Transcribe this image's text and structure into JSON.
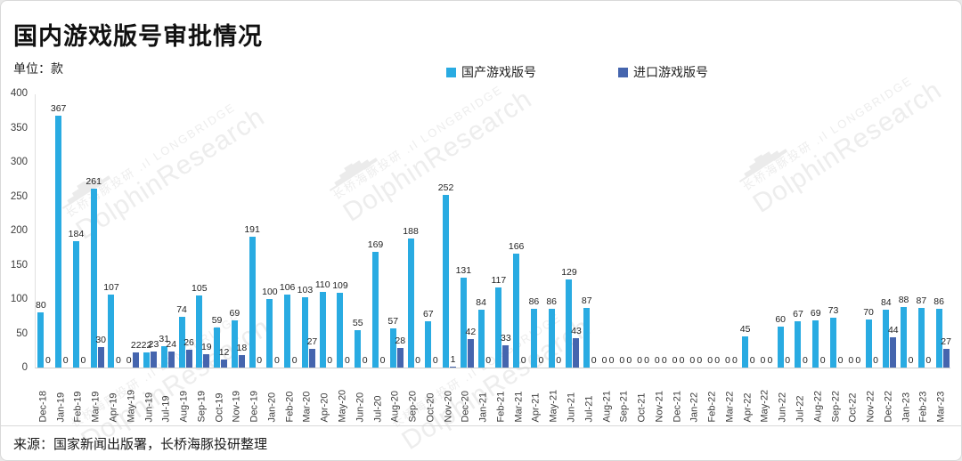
{
  "title": "国内游戏版号审批情况",
  "unit_label": "单位：款",
  "source": "来源：国家新闻出版署，长桥海豚投研整理",
  "watermark": {
    "logo_bars": "▁▃▅▇▆▄▂",
    "line1": "长桥海豚投研 .ıl",
    "line2": "LONGBRIDGE",
    "line3": "DolphinResearch"
  },
  "colors": {
    "domestic": "#29abe2",
    "import": "#4565ae",
    "label": "#1f1f1f",
    "axis": "#cfcfcf"
  },
  "legend": [
    {
      "label": "国产游戏版号",
      "color": "#29abe2"
    },
    {
      "label": "进口游戏版号",
      "color": "#4565ae"
    }
  ],
  "chart_data": {
    "type": "bar",
    "title": "国内游戏版号审批情况",
    "ylabel": "款",
    "ylim": [
      0,
      400
    ],
    "yticks": [
      0,
      50,
      100,
      150,
      200,
      250,
      300,
      350,
      400
    ],
    "grid": false,
    "legend_position": "top-center",
    "categories": [
      "Dec-18",
      "Jan-19",
      "Feb-19",
      "Mar-19",
      "Apr-19",
      "May-19",
      "Jun-19",
      "Jul-19",
      "Aug-19",
      "Sep-19",
      "Oct-19",
      "Nov-19",
      "Dec-19",
      "Jan-20",
      "Feb-20",
      "Mar-20",
      "Apr-20",
      "May-20",
      "Jun-20",
      "Jul-20",
      "Aug-20",
      "Sep-20",
      "Oct-20",
      "Nov-20",
      "Dec-20",
      "Jan-21",
      "Feb-21",
      "Mar-21",
      "Apr-21",
      "May-21",
      "Jun-21",
      "Jul-21",
      "Aug-21",
      "Sep-21",
      "Oct-21",
      "Nov-21",
      "Dec-21",
      "Jan-22",
      "Feb-22",
      "Mar-22",
      "Apr-22",
      "May-22",
      "Jun-22",
      "Jul-22",
      "Aug-22",
      "Sep-22",
      "Oct-22",
      "Nov-22",
      "Dec-22",
      "Jan-23",
      "Feb-23",
      "Mar-23"
    ],
    "series": [
      {
        "name": "国产游戏版号",
        "color": "#29abe2",
        "values": [
          80,
          367,
          184,
          261,
          107,
          0,
          22,
          31,
          74,
          105,
          59,
          69,
          191,
          100,
          106,
          103,
          110,
          109,
          55,
          169,
          57,
          188,
          67,
          252,
          131,
          84,
          117,
          166,
          86,
          86,
          129,
          87,
          0,
          0,
          0,
          0,
          0,
          0,
          0,
          0,
          45,
          0,
          60,
          67,
          69,
          73,
          0,
          70,
          84,
          88,
          87,
          86
        ]
      },
      {
        "name": "进口游戏版号",
        "color": "#4565ae",
        "values": [
          0,
          0,
          0,
          30,
          0,
          22,
          23,
          24,
          26,
          19,
          12,
          18,
          0,
          0,
          0,
          27,
          0,
          0,
          0,
          0,
          28,
          0,
          0,
          1,
          42,
          0,
          33,
          0,
          0,
          0,
          43,
          0,
          0,
          0,
          0,
          0,
          0,
          0,
          0,
          0,
          0,
          0,
          0,
          0,
          0,
          0,
          0,
          0,
          44,
          0,
          0,
          27
        ]
      }
    ]
  }
}
